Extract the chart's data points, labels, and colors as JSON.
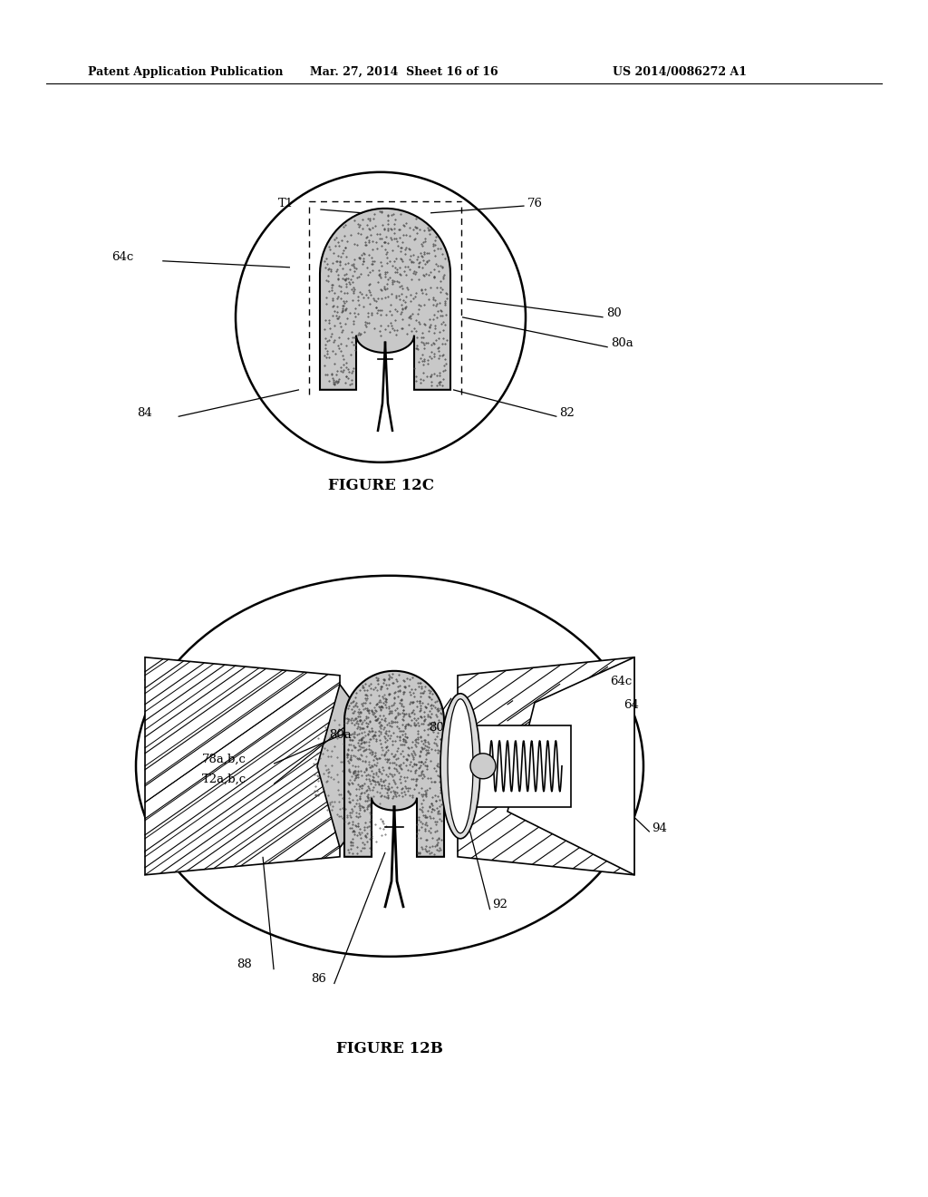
{
  "background_color": "#ffffff",
  "header_left": "Patent Application Publication",
  "header_center": "Mar. 27, 2014  Sheet 16 of 16",
  "header_right": "US 2014/0086272 A1",
  "fig12c_title": "FIGURE 12C",
  "fig12b_title": "FIGURE 12B"
}
